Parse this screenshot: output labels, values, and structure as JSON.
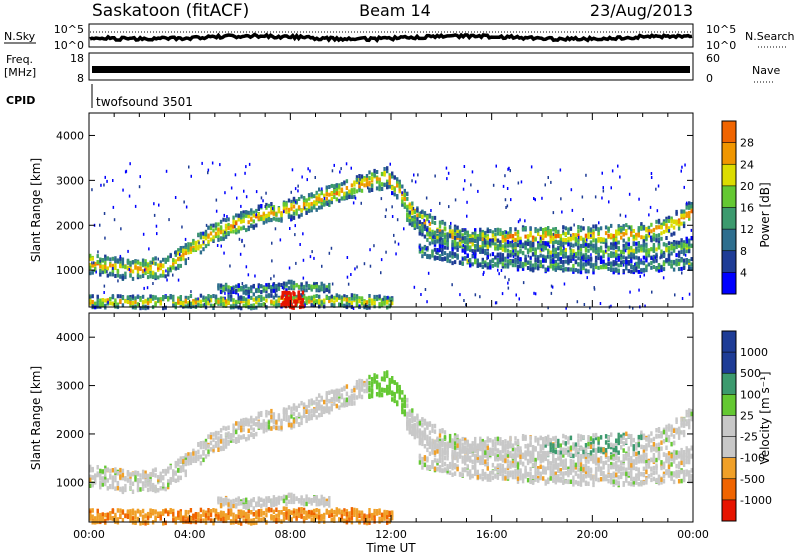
{
  "header": {
    "title": "Saskatoon (fitACF)",
    "beam": "Beam 14",
    "date": "23/Aug/2013"
  },
  "noise_panel": {
    "left_label": "N.Sky",
    "right_label": "N.Search",
    "left_ticks": [
      "10^5",
      "10^0"
    ],
    "right_ticks": [
      "10^5",
      "10^0"
    ]
  },
  "freq_panel": {
    "left_label_line1": "Freq.",
    "left_label_line2": "[MHz]",
    "left_ticks": [
      "18",
      "8"
    ],
    "right_label": "Nave",
    "right_ticks": [
      "60",
      "0"
    ]
  },
  "cpid": {
    "label": "CPID",
    "value": "twofsound 3501"
  },
  "colors": {
    "power": [
      "#0000ff",
      "#1e3c96",
      "#2e6e8e",
      "#3c9a6e",
      "#64c832",
      "#dcdc00",
      "#f09600",
      "#f06400",
      "#e61400"
    ],
    "velocity": [
      "#e61400",
      "#f06400",
      "#f0a028",
      "#c8c8c8",
      "#c8c8c8",
      "#64c832",
      "#3c9a6e",
      "#1e3c96",
      "#1e3c96"
    ]
  },
  "chart_data": [
    {
      "type": "heatmap",
      "quantity": "Power",
      "xlabel": "Time UT",
      "ylabel": "Slant Range [km]",
      "colorbar_label": "Power [dB]",
      "colorbar_ticks": [
        "28",
        "24",
        "20",
        "16",
        "12",
        "8",
        "4"
      ],
      "x_ticks": [
        "00:00",
        "04:00",
        "08:00",
        "12:00",
        "16:00",
        "20:00",
        "00:00"
      ],
      "y_ticks": [
        "4000",
        "3000",
        "2000",
        "1000"
      ],
      "xlim_hours": [
        0,
        24
      ],
      "ylim_km": [
        180,
        4500
      ],
      "bands": [
        {
          "x": [
            0,
            1.5,
            3,
            4,
            5,
            6,
            7,
            8,
            9,
            10,
            11,
            11.8,
            12.3,
            13,
            14,
            15,
            16,
            18,
            20,
            22,
            23,
            24
          ],
          "y": [
            1200,
            1050,
            1100,
            1500,
            1900,
            2100,
            2300,
            2400,
            2600,
            2800,
            3000,
            3100,
            2800,
            2200,
            1900,
            1700,
            1750,
            1800,
            1800,
            1850,
            2000,
            2400
          ],
          "center_db": 20,
          "width_km": 280
        },
        {
          "x": [
            12.5,
            13.5,
            15,
            17,
            19,
            21,
            23,
            24
          ],
          "y": [
            2300,
            1800,
            1600,
            1500,
            1450,
            1450,
            1500,
            1600
          ],
          "center_db": 14,
          "width_km": 220
        },
        {
          "x": [
            13,
            15,
            18,
            21,
            24
          ],
          "y": [
            1500,
            1250,
            1150,
            1100,
            1200
          ],
          "center_db": 12,
          "width_km": 160
        },
        {
          "x": [
            0,
            2,
            4,
            6,
            8,
            10,
            12
          ],
          "y": [
            350,
            320,
            350,
            320,
            380,
            360,
            320
          ],
          "center_db": 18,
          "width_km": 170
        },
        {
          "x": [
            5,
            6.5,
            8,
            9.5
          ],
          "y": [
            650,
            600,
            700,
            650
          ],
          "center_db": 12,
          "width_km": 120
        }
      ]
    },
    {
      "type": "heatmap",
      "quantity": "Velocity",
      "xlabel": "Time UT",
      "ylabel": "Slant Range [km]",
      "colorbar_label": "Velocity [m s⁻¹]",
      "colorbar_ticks": [
        "1000",
        "500",
        "100",
        "25",
        "-25",
        "-100",
        "-500",
        "-1000"
      ],
      "x_ticks": [
        "00:00",
        "04:00",
        "08:00",
        "12:00",
        "16:00",
        "20:00",
        "00:00"
      ],
      "y_ticks": [
        "4000",
        "3000",
        "2000",
        "1000"
      ],
      "xlim_hours": [
        0,
        24
      ],
      "ylim_km": [
        180,
        4500
      ]
    }
  ]
}
